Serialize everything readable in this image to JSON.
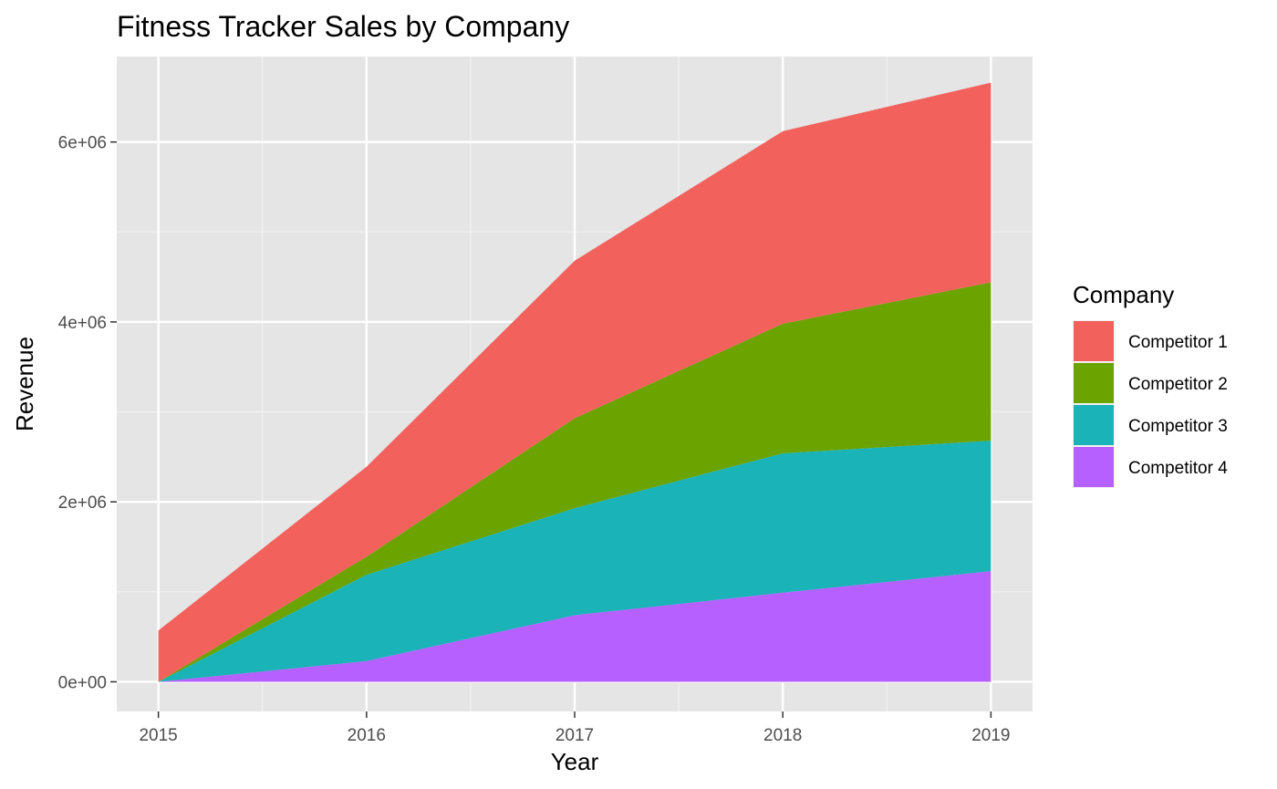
{
  "chart_data": {
    "type": "area",
    "stacked": true,
    "title": "Fitness Tracker Sales by Company",
    "xlabel": "Year",
    "ylabel": "Revenue",
    "x": [
      2015,
      2016,
      2017,
      2018,
      2019
    ],
    "x_tick_labels": [
      "2015",
      "2016",
      "2017",
      "2018",
      "2019"
    ],
    "xlim": [
      2014.8,
      2019.2
    ],
    "ylim": [
      -330000,
      6950000
    ],
    "y_ticks": [
      0,
      2000000,
      4000000,
      6000000
    ],
    "y_tick_labels": [
      "0e+00",
      "2e+06",
      "4e+06",
      "6e+06"
    ],
    "grid": true,
    "legend": {
      "title": "Company",
      "position": "right"
    },
    "series": [
      {
        "name": "Competitor 1",
        "color": "#F2615C",
        "values": [
          570000,
          1000000,
          1750000,
          2140000,
          2220000
        ]
      },
      {
        "name": "Competitor 2",
        "color": "#6BA300",
        "values": [
          0,
          200000,
          1000000,
          1440000,
          1760000
        ]
      },
      {
        "name": "Competitor 3",
        "color": "#19B3B8",
        "values": [
          0,
          960000,
          1190000,
          1550000,
          1450000
        ]
      },
      {
        "name": "Competitor 4",
        "color": "#B660FF",
        "values": [
          0,
          230000,
          740000,
          990000,
          1230000
        ]
      }
    ]
  }
}
